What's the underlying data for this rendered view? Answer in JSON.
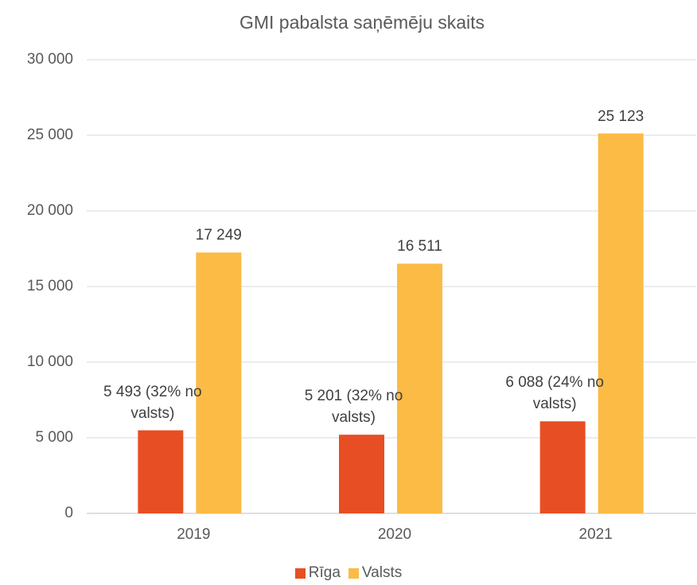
{
  "chart_data": {
    "type": "bar",
    "title": "GMI pabalsta saņēmēju skaits",
    "categories": [
      "2019",
      "2020",
      "2021"
    ],
    "series": [
      {
        "name": "Rīga",
        "color": "#e84e23",
        "values": [
          5493,
          5201,
          6088
        ],
        "value_labels": [
          "5 493 (32% no valsts)",
          "5 201 (32% no valsts)",
          "6 088 (24% no valsts)"
        ]
      },
      {
        "name": "Valsts",
        "color": "#fbbb45",
        "values": [
          17249,
          16511,
          25123
        ],
        "value_labels": [
          "17 249",
          "16 511",
          "25 123"
        ]
      }
    ],
    "ylim": [
      0,
      30000
    ],
    "yticks": [
      0,
      {
        "value": 5000,
        "label": "5 000"
      },
      {
        "value": 10000,
        "label": "10 000"
      },
      {
        "value": 15000,
        "label": "15 000"
      },
      {
        "value": 20000,
        "label": "20 000"
      },
      {
        "value": 25000,
        "label": "25 000"
      },
      {
        "value": 30000,
        "label": "30 000"
      }
    ],
    "grid": true,
    "legend": "bottom"
  }
}
